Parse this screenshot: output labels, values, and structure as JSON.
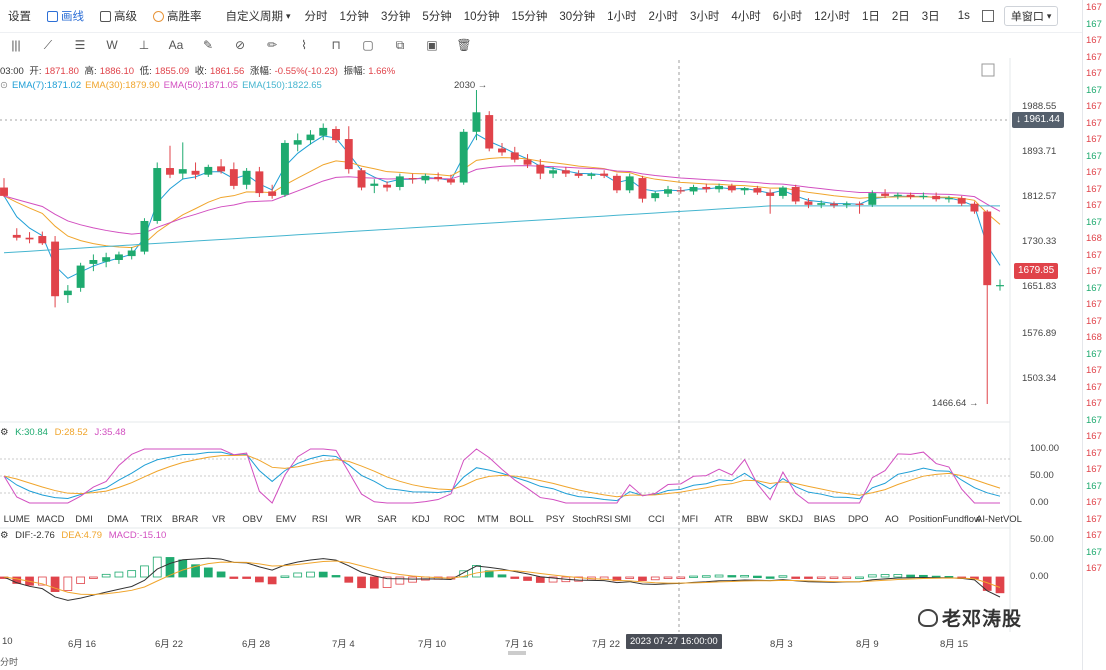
{
  "toolbar": {
    "items": [
      {
        "label": "设置",
        "active": false
      },
      {
        "label": "画线",
        "active": true
      },
      {
        "label": "高级",
        "active": false
      },
      {
        "label": "高胜率",
        "active": false
      }
    ],
    "custom_period": "自定义周期",
    "periods": [
      "分时",
      "1分钟",
      "3分钟",
      "5分钟",
      "10分钟",
      "15分钟",
      "30分钟",
      "1小时",
      "2小时",
      "3小时",
      "4小时",
      "6小时",
      "12小时",
      "1日",
      "2日",
      "3日"
    ],
    "extra": "1s",
    "window_label": "单窗口"
  },
  "price_info": {
    "time": "03:00",
    "open_label": "开:",
    "open": "1871.80",
    "high_label": "高:",
    "high": "1886.10",
    "low_label": "低:",
    "low": "1855.09",
    "close_label": "收:",
    "close": "1861.56",
    "change_label": "涨幅:",
    "change": "-0.55%(-10.23)",
    "amp_label": "振幅:",
    "amp": "1.66%"
  },
  "ema_legend": [
    {
      "label": "EMA(7):1871.02",
      "color": "#1f9fd6"
    },
    {
      "label": "EMA(30):1879.90",
      "color": "#f0a52c"
    },
    {
      "label": "EMA(50):1871.05",
      "color": "#d24fc0"
    },
    {
      "label": "EMA(150):1822.65",
      "color": "#45b5cf"
    }
  ],
  "price_axis": {
    "labels": [
      {
        "value": "1988.55",
        "y": 107
      },
      {
        "value": "1893.71",
        "y": 152
      },
      {
        "value": "1812.57",
        "y": 197
      },
      {
        "value": "1730.33",
        "y": 242
      },
      {
        "value": "1651.83",
        "y": 287
      },
      {
        "value": "1576.89",
        "y": 334
      },
      {
        "value": "1503.34",
        "y": 379
      }
    ],
    "current_tag": "1961.44",
    "last_tag": "1679.85",
    "high_mark": "2030",
    "low_mark": "1466.64"
  },
  "kdj": {
    "label_k": "K:30.84",
    "label_d": "D:28.52",
    "label_j": "J:35.48",
    "axis": [
      "100.00",
      "50.00",
      "0.00"
    ]
  },
  "macd": {
    "label_dif": "DIF:-2.76",
    "label_dea": "DEA:4.79",
    "label_macd": "MACD:-15.10",
    "axis": [
      "50.00",
      "0.00"
    ]
  },
  "indicator_tabs": [
    "LUME",
    "MACD",
    "DMI",
    "DMA",
    "TRIX",
    "BRAR",
    "VR",
    "OBV",
    "EMV",
    "RSI",
    "WR",
    "SAR",
    "KDJ",
    "ROC",
    "MTM",
    "BOLL",
    "PSY",
    "StochRSI",
    "SMI",
    "CCI",
    "MFI",
    "ATR",
    "BBW",
    "SKDJ",
    "BIAS",
    "DPO",
    "AO",
    "Position",
    "Fundflow",
    "AI-NetVOL"
  ],
  "dates": [
    {
      "label": "10",
      "x": 2
    },
    {
      "label": "6月 16",
      "x": 68
    },
    {
      "label": "6月 22",
      "x": 155
    },
    {
      "label": "6月 28",
      "x": 242
    },
    {
      "label": "7月 4",
      "x": 332
    },
    {
      "label": "7月 10",
      "x": 418
    },
    {
      "label": "7月 16",
      "x": 505
    },
    {
      "label": "7月 22",
      "x": 592
    },
    {
      "label": "8月 3",
      "x": 770
    },
    {
      "label": "8月 9",
      "x": 856
    },
    {
      "label": "8月 15",
      "x": 940
    }
  ],
  "crosshair_date": "2023 07-27 16:00:00",
  "watermark": "老邓涛股",
  "right_strip": [
    "167",
    "167",
    "167",
    "167",
    "167",
    "167",
    "167",
    "167",
    "167",
    "167",
    "167",
    "167",
    "167",
    "167",
    "168",
    "167",
    "167",
    "167",
    "167",
    "167",
    "168",
    "167",
    "167",
    "167",
    "167",
    "167",
    "167",
    "167",
    "167",
    "167",
    "167",
    "167",
    "167",
    "167",
    "167"
  ],
  "bottom_left": "分时",
  "colors": {
    "up": "#1eaa6f",
    "down": "#e0434a",
    "accent": "#2d6fd6"
  },
  "chart_data": {
    "type": "candlestick",
    "series_note": "",
    "candles": [
      {
        "o": 1855,
        "h": 1872,
        "l": 1838,
        "c": 1840
      },
      {
        "o": 1770,
        "h": 1782,
        "l": 1760,
        "c": 1765
      },
      {
        "o": 1765,
        "h": 1775,
        "l": 1755,
        "c": 1762
      },
      {
        "o": 1768,
        "h": 1776,
        "l": 1752,
        "c": 1755
      },
      {
        "o": 1758,
        "h": 1768,
        "l": 1640,
        "c": 1660
      },
      {
        "o": 1662,
        "h": 1680,
        "l": 1648,
        "c": 1670
      },
      {
        "o": 1675,
        "h": 1720,
        "l": 1668,
        "c": 1715
      },
      {
        "o": 1718,
        "h": 1735,
        "l": 1705,
        "c": 1725
      },
      {
        "o": 1722,
        "h": 1738,
        "l": 1712,
        "c": 1730
      },
      {
        "o": 1725,
        "h": 1740,
        "l": 1718,
        "c": 1735
      },
      {
        "o": 1732,
        "h": 1748,
        "l": 1726,
        "c": 1742
      },
      {
        "o": 1740,
        "h": 1800,
        "l": 1735,
        "c": 1795
      },
      {
        "o": 1795,
        "h": 1900,
        "l": 1790,
        "c": 1890
      },
      {
        "o": 1890,
        "h": 1930,
        "l": 1872,
        "c": 1878
      },
      {
        "o": 1880,
        "h": 1936,
        "l": 1870,
        "c": 1888
      },
      {
        "o": 1885,
        "h": 1900,
        "l": 1870,
        "c": 1878
      },
      {
        "o": 1878,
        "h": 1896,
        "l": 1874,
        "c": 1892
      },
      {
        "o": 1893,
        "h": 1906,
        "l": 1880,
        "c": 1884
      },
      {
        "o": 1888,
        "h": 1900,
        "l": 1852,
        "c": 1858
      },
      {
        "o": 1860,
        "h": 1890,
        "l": 1852,
        "c": 1885
      },
      {
        "o": 1884,
        "h": 1892,
        "l": 1838,
        "c": 1845
      },
      {
        "o": 1848,
        "h": 1860,
        "l": 1835,
        "c": 1840
      },
      {
        "o": 1842,
        "h": 1940,
        "l": 1838,
        "c": 1935
      },
      {
        "o": 1932,
        "h": 1952,
        "l": 1920,
        "c": 1940
      },
      {
        "o": 1940,
        "h": 1958,
        "l": 1932,
        "c": 1950
      },
      {
        "o": 1948,
        "h": 1970,
        "l": 1940,
        "c": 1962
      },
      {
        "o": 1960,
        "h": 1965,
        "l": 1935,
        "c": 1940
      },
      {
        "o": 1942,
        "h": 1965,
        "l": 1880,
        "c": 1888
      },
      {
        "o": 1886,
        "h": 1890,
        "l": 1850,
        "c": 1855
      },
      {
        "o": 1858,
        "h": 1870,
        "l": 1845,
        "c": 1862
      },
      {
        "o": 1860,
        "h": 1866,
        "l": 1848,
        "c": 1855
      },
      {
        "o": 1856,
        "h": 1880,
        "l": 1850,
        "c": 1875
      },
      {
        "o": 1872,
        "h": 1880,
        "l": 1862,
        "c": 1870
      },
      {
        "o": 1868,
        "h": 1880,
        "l": 1862,
        "c": 1876
      },
      {
        "o": 1874,
        "h": 1882,
        "l": 1866,
        "c": 1870
      },
      {
        "o": 1870,
        "h": 1878,
        "l": 1860,
        "c": 1864
      },
      {
        "o": 1864,
        "h": 1960,
        "l": 1860,
        "c": 1955
      },
      {
        "o": 1955,
        "h": 2030,
        "l": 1940,
        "c": 1990
      },
      {
        "o": 1985,
        "h": 1992,
        "l": 1920,
        "c": 1925
      },
      {
        "o": 1925,
        "h": 1935,
        "l": 1912,
        "c": 1918
      },
      {
        "o": 1918,
        "h": 1928,
        "l": 1900,
        "c": 1905
      },
      {
        "o": 1905,
        "h": 1915,
        "l": 1890,
        "c": 1896
      },
      {
        "o": 1896,
        "h": 1906,
        "l": 1870,
        "c": 1880
      },
      {
        "o": 1880,
        "h": 1892,
        "l": 1872,
        "c": 1886
      },
      {
        "o": 1886,
        "h": 1892,
        "l": 1874,
        "c": 1880
      },
      {
        "o": 1880,
        "h": 1886,
        "l": 1872,
        "c": 1876
      },
      {
        "o": 1876,
        "h": 1882,
        "l": 1870,
        "c": 1879
      },
      {
        "o": 1880,
        "h": 1886,
        "l": 1872,
        "c": 1876
      },
      {
        "o": 1876,
        "h": 1880,
        "l": 1845,
        "c": 1850
      },
      {
        "o": 1850,
        "h": 1880,
        "l": 1845,
        "c": 1875
      },
      {
        "o": 1872,
        "h": 1876,
        "l": 1828,
        "c": 1835
      },
      {
        "o": 1836,
        "h": 1848,
        "l": 1830,
        "c": 1845
      },
      {
        "o": 1844,
        "h": 1858,
        "l": 1838,
        "c": 1852
      },
      {
        "o": 1850,
        "h": 1856,
        "l": 1844,
        "c": 1848
      },
      {
        "o": 1848,
        "h": 1860,
        "l": 1842,
        "c": 1856
      },
      {
        "o": 1856,
        "h": 1862,
        "l": 1846,
        "c": 1852
      },
      {
        "o": 1852,
        "h": 1862,
        "l": 1846,
        "c": 1858
      },
      {
        "o": 1858,
        "h": 1862,
        "l": 1846,
        "c": 1850
      },
      {
        "o": 1850,
        "h": 1856,
        "l": 1842,
        "c": 1854
      },
      {
        "o": 1854,
        "h": 1858,
        "l": 1842,
        "c": 1846
      },
      {
        "o": 1846,
        "h": 1852,
        "l": 1808,
        "c": 1840
      },
      {
        "o": 1840,
        "h": 1858,
        "l": 1835,
        "c": 1855
      },
      {
        "o": 1856,
        "h": 1860,
        "l": 1825,
        "c": 1830
      },
      {
        "o": 1830,
        "h": 1836,
        "l": 1818,
        "c": 1824
      },
      {
        "o": 1824,
        "h": 1832,
        "l": 1818,
        "c": 1827
      },
      {
        "o": 1826,
        "h": 1830,
        "l": 1818,
        "c": 1823
      },
      {
        "o": 1824,
        "h": 1830,
        "l": 1818,
        "c": 1826
      },
      {
        "o": 1826,
        "h": 1830,
        "l": 1808,
        "c": 1824
      },
      {
        "o": 1824,
        "h": 1850,
        "l": 1820,
        "c": 1845
      },
      {
        "o": 1844,
        "h": 1852,
        "l": 1836,
        "c": 1840
      },
      {
        "o": 1840,
        "h": 1846,
        "l": 1834,
        "c": 1842
      },
      {
        "o": 1842,
        "h": 1846,
        "l": 1834,
        "c": 1838
      },
      {
        "o": 1838,
        "h": 1846,
        "l": 1834,
        "c": 1840
      },
      {
        "o": 1840,
        "h": 1846,
        "l": 1830,
        "c": 1834
      },
      {
        "o": 1834,
        "h": 1840,
        "l": 1828,
        "c": 1836
      },
      {
        "o": 1836,
        "h": 1840,
        "l": 1822,
        "c": 1826
      },
      {
        "o": 1826,
        "h": 1830,
        "l": 1808,
        "c": 1812
      },
      {
        "o": 1812,
        "h": 1815,
        "l": 1466.64,
        "c": 1679.85
      },
      {
        "o": 1679,
        "h": 1690,
        "l": 1670,
        "c": 1680
      }
    ]
  }
}
